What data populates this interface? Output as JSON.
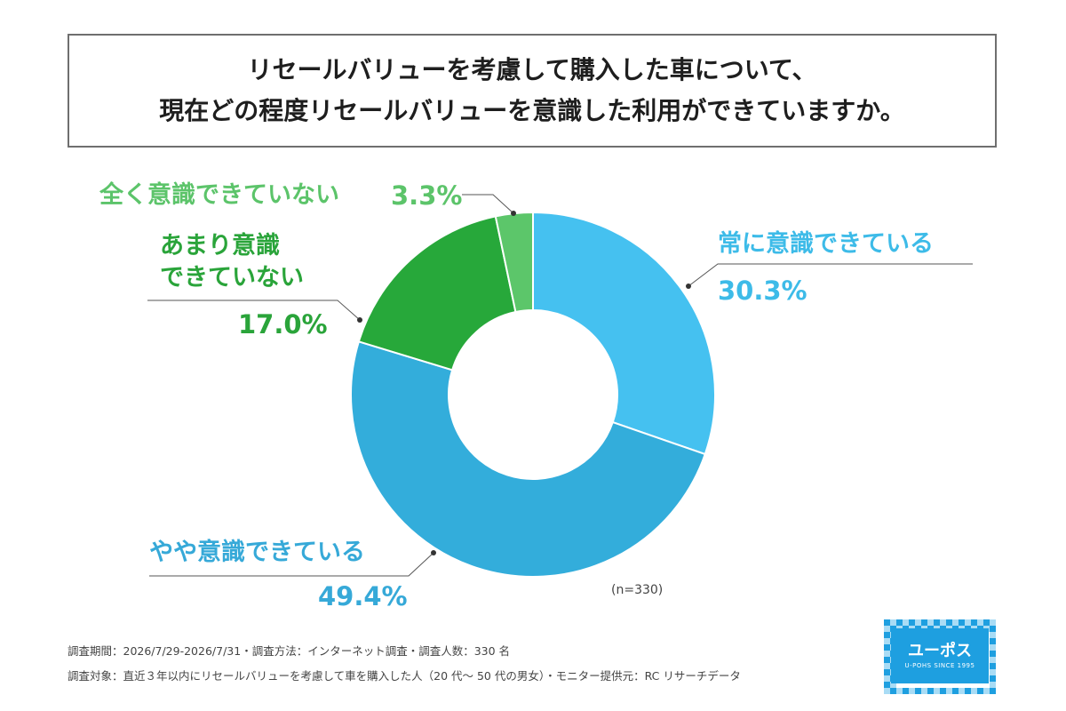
{
  "title": {
    "line1": "リセールバリューを考慮して購入した車について、",
    "line2": "現在どの程度リセールバリューを意識した利用ができていますか。"
  },
  "chart_data": {
    "type": "pie",
    "donut": true,
    "slices": [
      {
        "label": "常に意識できている",
        "value": 30.3,
        "display": "30.3%",
        "color": "#45c1f0"
      },
      {
        "label": "やや意識できている",
        "value": 49.4,
        "display": "49.4%",
        "color": "#33addb"
      },
      {
        "label_lines": [
          "あまり意識",
          "できていない"
        ],
        "value": 17.0,
        "display": "17.0%",
        "color": "#27a83a"
      },
      {
        "label": "全く意識できていない",
        "value": 3.3,
        "display": "3.3%",
        "color": "#5cc66a"
      }
    ],
    "sample_size": "(n=330)"
  },
  "footer": {
    "line1": "調査期間：2026/7/29-2026/7/31・調査方法：インターネット調査・調査人数：330 名",
    "line2": "調査対象：直近３年以内にリセールバリューを考慮して車を購入した人（20 代〜 50 代の男女）・モニター提供元：RC リサーチデータ"
  },
  "logo": {
    "name": "ユーポス",
    "tagline": "U-POHS SINCE 1995",
    "colors": {
      "blue": "#1e9fe0",
      "light": "#a9dcf5"
    }
  }
}
